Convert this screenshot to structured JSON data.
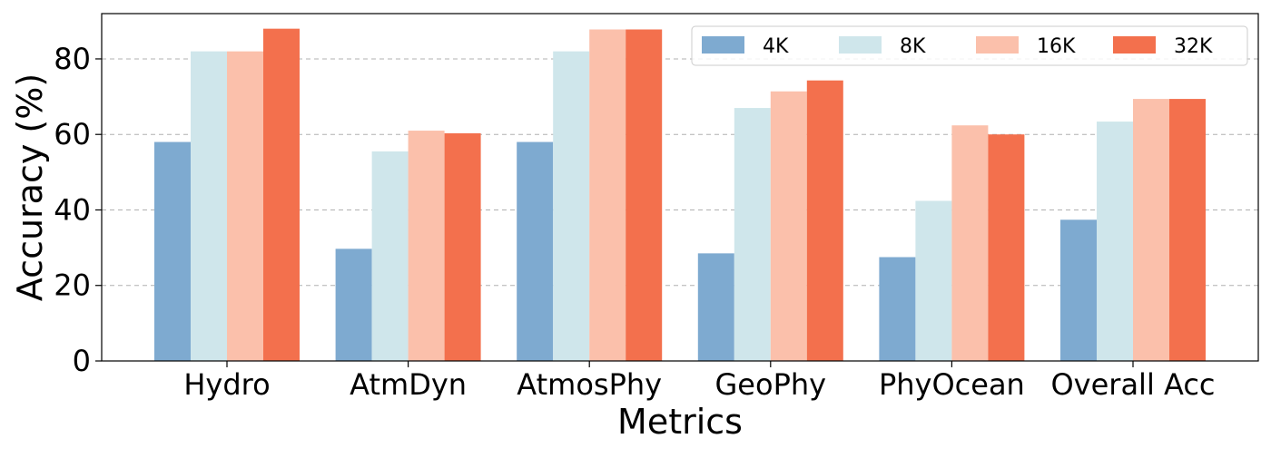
{
  "chart_data": {
    "type": "bar",
    "title": "",
    "xlabel": "Metrics",
    "ylabel": "Accuracy (%)",
    "ylim": [
      0,
      92
    ],
    "yticks": [
      0,
      20,
      40,
      60,
      80
    ],
    "grid": true,
    "legend_position": "top-right",
    "categories": [
      "Hydro",
      "AtmDyn",
      "AtmosPhy",
      "GeoPhy",
      "PhyOcean",
      "Overall Acc"
    ],
    "series": [
      {
        "name": "4K",
        "color": "#7eaad0",
        "values": [
          58.0,
          29.7,
          58.0,
          28.5,
          27.5,
          37.4
        ]
      },
      {
        "name": "8K",
        "color": "#cfe6eb",
        "values": [
          82.0,
          55.5,
          82.0,
          67.0,
          42.4,
          63.4
        ]
      },
      {
        "name": "16K",
        "color": "#fbc0ab",
        "values": [
          82.0,
          61.0,
          87.8,
          71.4,
          62.4,
          69.4
        ]
      },
      {
        "name": "32K",
        "color": "#f3704d",
        "values": [
          88.0,
          60.3,
          87.8,
          74.3,
          60.0,
          69.4
        ]
      }
    ]
  }
}
